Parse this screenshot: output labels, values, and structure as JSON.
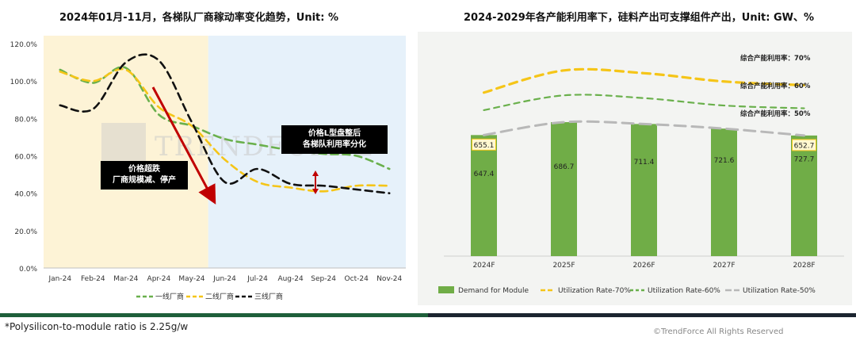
{
  "left_title": "2024年01月-11月，各梯队厂商稼动率变化趋势，Unit: %",
  "right_title": "2024-2029年各产能利用率下，硅料产出可支撑组件产出，Unit: GW、%",
  "footnote": "*Polysilicon-to-module ratio is 2.25g/w",
  "copyright": "©TrendForce All Rights Reserved",
  "watermark": "TRENDFORCE",
  "colors": {
    "tier1": "#6ab04c",
    "tier2": "#f5c518",
    "tier3": "#111111",
    "arrow": "#c00000",
    "bar": "#70ad47",
    "rate70": "#f5c518",
    "rate60": "#6ab04c",
    "rate50": "#b8b8b8",
    "shade_left": "#fdf3d6",
    "shade_right": "#e6f1fa"
  },
  "callouts": {
    "c1": [
      "价格超跌",
      "厂商规模减、停产"
    ],
    "c2": [
      "价格L型盘整后",
      "各梯队利用率分化"
    ]
  },
  "chart_data": [
    {
      "type": "line",
      "x": [
        "Jan-24",
        "Feb-24",
        "Mar-24",
        "Apr-24",
        "May-24",
        "Jun-24",
        "Jul-24",
        "Aug-24",
        "Sep-24",
        "Oct-24",
        "Nov-24"
      ],
      "ylim": [
        0,
        120
      ],
      "yticks": [
        "0.0%",
        "20.0%",
        "40.0%",
        "60.0%",
        "80.0%",
        "100.0%",
        "120.0%"
      ],
      "series": [
        {
          "name": "一线厂商",
          "values": [
            106,
            99,
            107,
            82,
            76,
            69,
            66,
            63,
            61,
            60,
            53
          ]
        },
        {
          "name": "二线厂商",
          "values": [
            105,
            100,
            106,
            86,
            76,
            58,
            46,
            43,
            41,
            44,
            44
          ]
        },
        {
          "name": "三线厂商",
          "values": [
            87,
            85,
            110,
            111,
            78,
            46,
            53,
            45,
            44,
            42,
            40
          ]
        }
      ]
    },
    {
      "type": "bar",
      "categories": [
        "2024F",
        "2025F",
        "2026F",
        "2027F",
        "2028F"
      ],
      "series": [
        {
          "name": "Demand for Module",
          "values": [
            647.4,
            686.7,
            711.4,
            721.6,
            727.7
          ]
        },
        {
          "name": "Utilization Rate-70%",
          "values": [
            885,
            1005,
            990,
            945,
            925
          ]
        },
        {
          "name": "Utilization Rate-60%",
          "values": [
            790,
            870,
            855,
            815,
            800
          ]
        },
        {
          "name": "Utilization Rate-50%",
          "values": [
            655.1,
            725,
            715,
            690,
            652.7
          ]
        }
      ],
      "bar_top_labels": [
        "655.1",
        "",
        "",
        "",
        "652.7"
      ],
      "line_labels": [
        "综合产能利用率：70%",
        "综合产能利用率：60%",
        "综合产能利用率：50%"
      ],
      "ylim": [
        0,
        1150
      ]
    }
  ]
}
